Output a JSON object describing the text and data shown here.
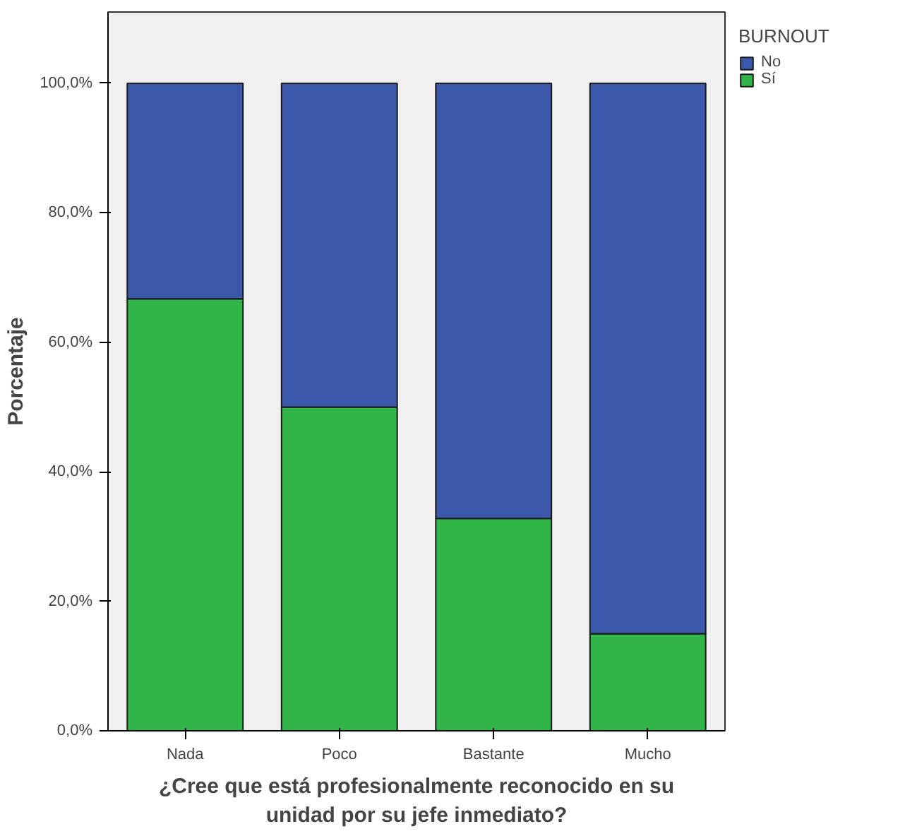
{
  "chart_data": {
    "type": "bar",
    "stacked": true,
    "xlabel": "¿Cree que está profesionalmente reconocido en su\nunidad por su jefe inmediato?",
    "ylabel": "Porcentaje",
    "legend_title": "BURNOUT",
    "legend": "top right",
    "grid": false,
    "categories": [
      "Nada",
      "Poco",
      "Bastante",
      "Mucho"
    ],
    "ylim": [
      0,
      111
    ],
    "yticks": [
      {
        "value": 0,
        "label": "0,0%"
      },
      {
        "value": 20,
        "label": "20,0%"
      },
      {
        "value": 40,
        "label": "40,0%"
      },
      {
        "value": 60,
        "label": "60,0%"
      },
      {
        "value": 80,
        "label": "80,0%"
      },
      {
        "value": 100,
        "label": "100,0%"
      }
    ],
    "series": [
      {
        "name": "Sí",
        "color": "#31b549",
        "values": [
          66.7,
          50.0,
          32.8,
          15.0
        ]
      },
      {
        "name": "No",
        "color": "#3c58aa",
        "values": [
          33.3,
          50.0,
          67.2,
          85.0
        ]
      }
    ]
  }
}
